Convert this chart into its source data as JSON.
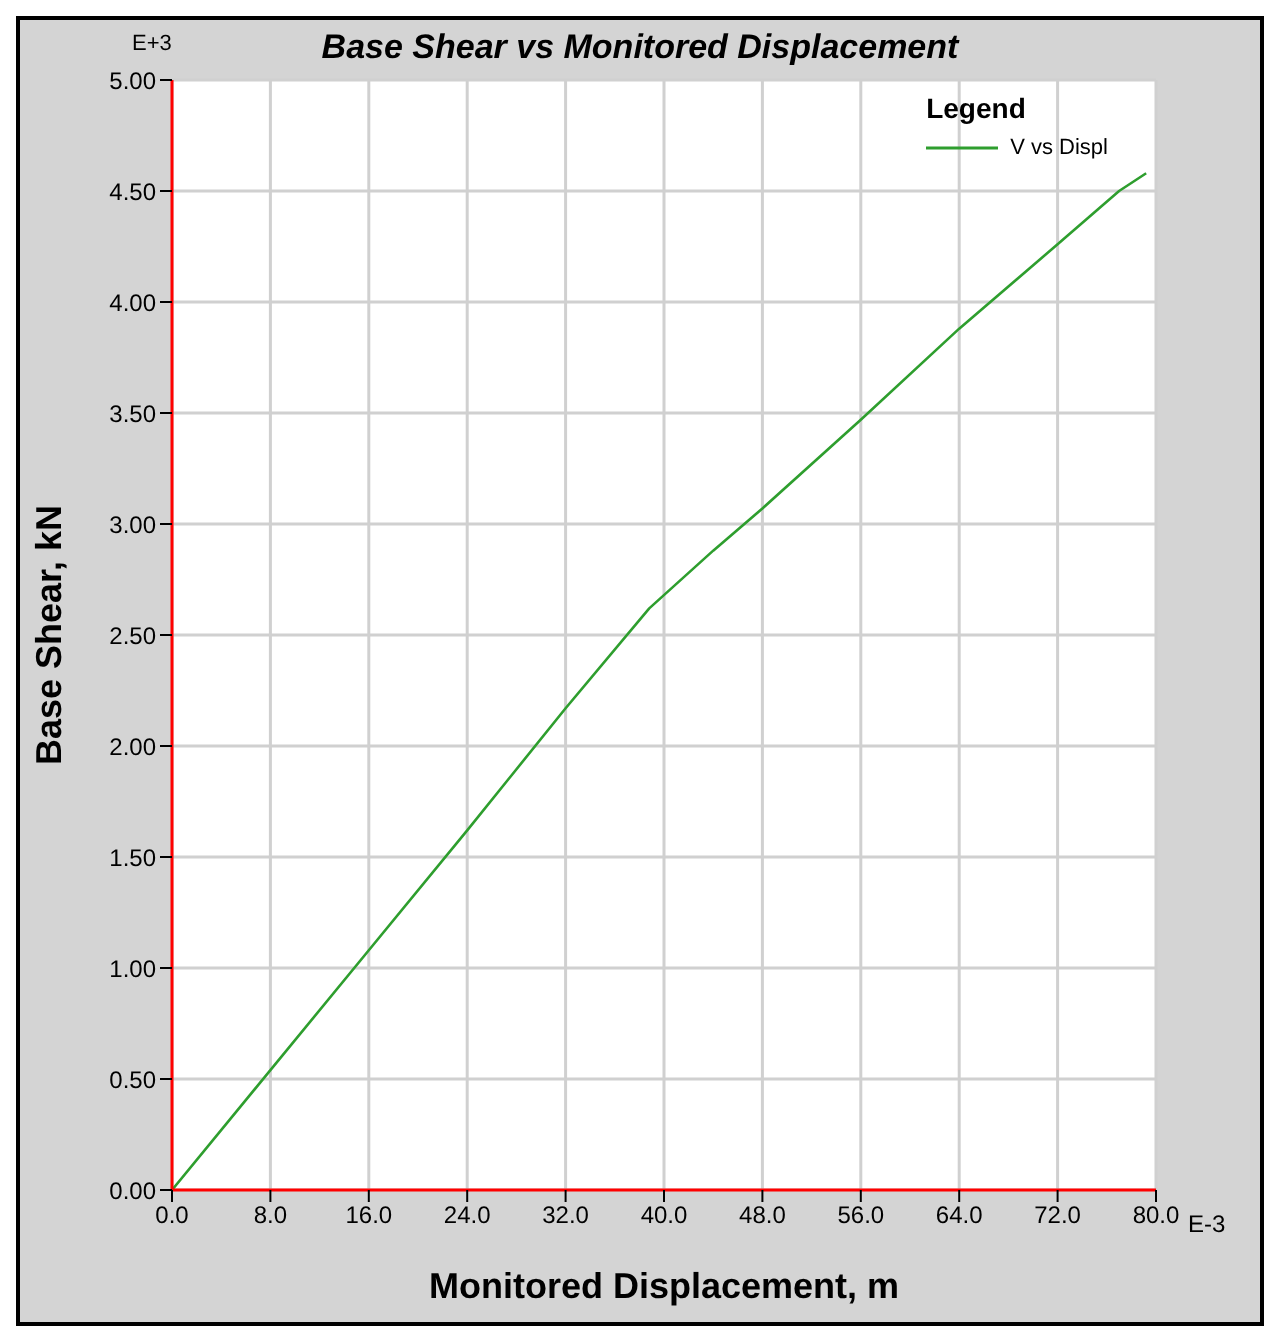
{
  "chart_data": {
    "type": "line",
    "title": "Base Shear vs Monitored Displacement",
    "xlabel": "Monitored Displacement, m",
    "ylabel": "Base Shear, kN",
    "legend_title": "Legend",
    "annotations": [
      "E+3",
      "E-3"
    ],
    "x": [
      0,
      8,
      16,
      24,
      32,
      38.8,
      44,
      48,
      56,
      64,
      72,
      77,
      79.2
    ],
    "series": [
      {
        "name": "V vs Displ",
        "color": "#2e9e2e",
        "values": [
          0,
          0.54,
          1.08,
          1.62,
          2.17,
          2.62,
          2.88,
          3.07,
          3.47,
          3.88,
          4.26,
          4.5,
          4.58
        ]
      }
    ],
    "xlim": [
      0,
      80
    ],
    "xticks": [
      {
        "value": 0,
        "label": "0.0"
      },
      {
        "value": 8,
        "label": "8.0"
      },
      {
        "value": 16,
        "label": "16.0"
      },
      {
        "value": 24,
        "label": "24.0"
      },
      {
        "value": 32,
        "label": "32.0"
      },
      {
        "value": 40,
        "label": "40.0"
      },
      {
        "value": 48,
        "label": "48.0"
      },
      {
        "value": 56,
        "label": "56.0"
      },
      {
        "value": 64,
        "label": "64.0"
      },
      {
        "value": 72,
        "label": "72.0"
      },
      {
        "value": 80,
        "label": "80.0"
      }
    ],
    "ylim": [
      0,
      5
    ],
    "yticks": [
      {
        "value": 0,
        "label": "0.00"
      },
      {
        "value": 0.5,
        "label": "0.50"
      },
      {
        "value": 1,
        "label": "1.00"
      },
      {
        "value": 1.5,
        "label": "1.50"
      },
      {
        "value": 2,
        "label": "2.00"
      },
      {
        "value": 2.5,
        "label": "2.50"
      },
      {
        "value": 3,
        "label": "3.00"
      },
      {
        "value": 3.5,
        "label": "3.50"
      },
      {
        "value": 4,
        "label": "4.00"
      },
      {
        "value": 4.5,
        "label": "4.50"
      },
      {
        "value": 5,
        "label": "5.00"
      }
    ],
    "grid": true,
    "legend": "top right",
    "marker": "none",
    "line_style": "solid"
  }
}
